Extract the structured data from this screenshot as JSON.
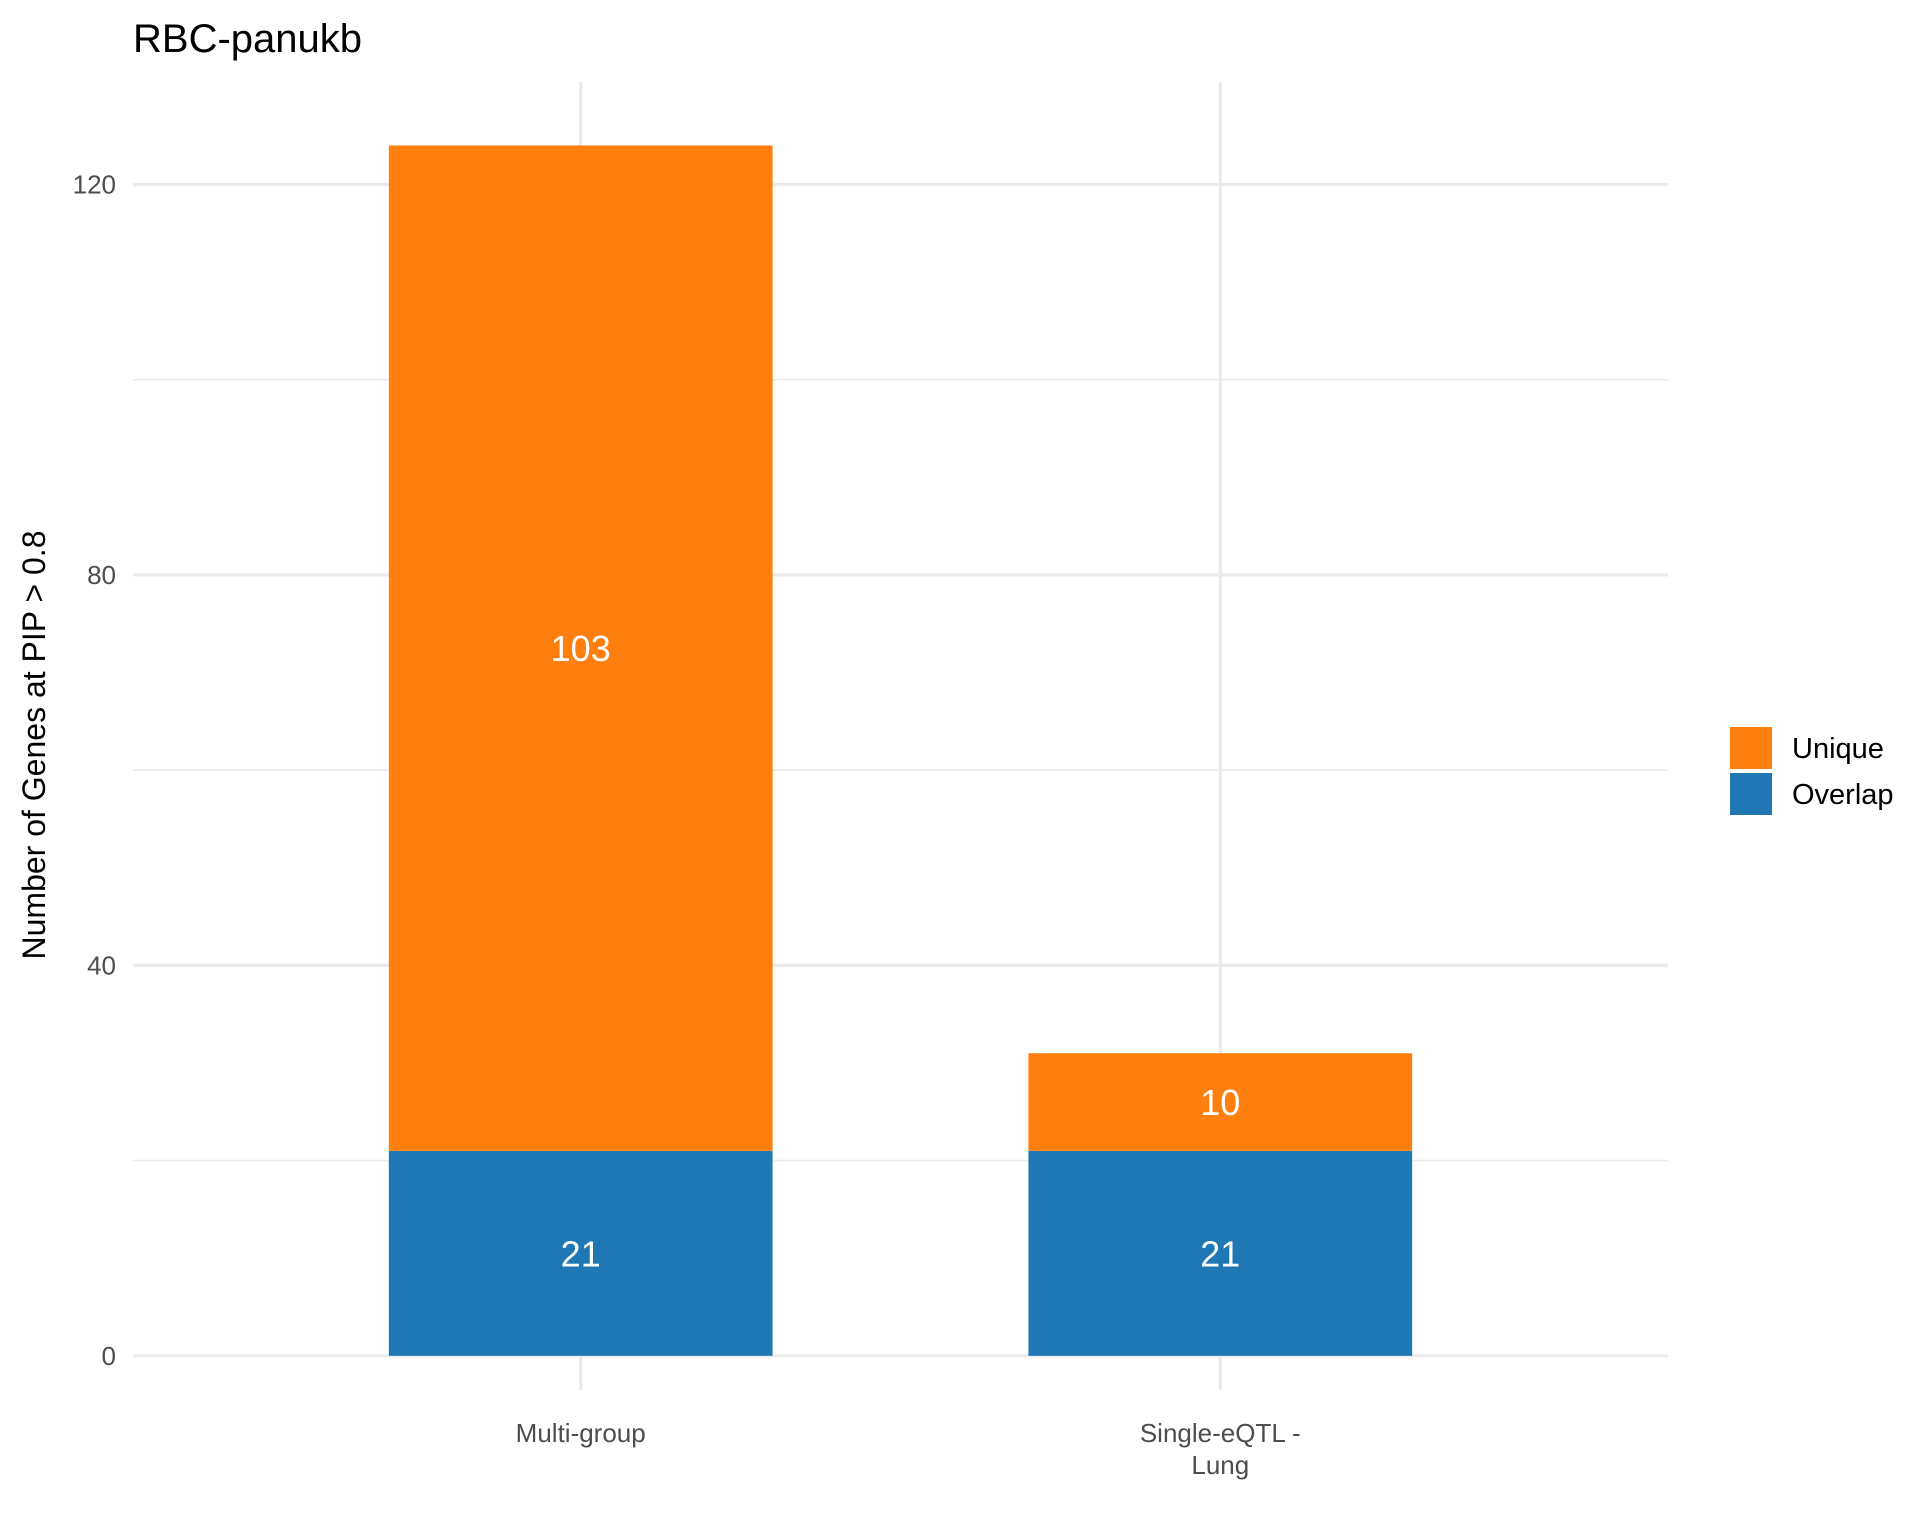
{
  "chart_data": {
    "type": "bar",
    "stacked": true,
    "title": "RBC-panukb",
    "xlabel": "",
    "ylabel": "Number of Genes at PIP > 0.8",
    "categories": [
      [
        "Multi-group"
      ],
      [
        "Single-eQTL -",
        "Lung"
      ]
    ],
    "series": [
      {
        "name": "Overlap",
        "color": "#1f77b4",
        "values": [
          21,
          21
        ]
      },
      {
        "name": "Unique",
        "color": "#ff7f0e",
        "values": [
          103,
          10
        ]
      }
    ],
    "legend_order": [
      "Unique",
      "Overlap"
    ],
    "ylim": [
      -3.5,
      130.5
    ],
    "y_ticks": [
      0,
      40,
      80,
      120
    ],
    "y_minor_ticks": [
      20,
      60,
      100
    ],
    "grid": true,
    "legend_position": "right",
    "label_color": "#ffffff"
  }
}
